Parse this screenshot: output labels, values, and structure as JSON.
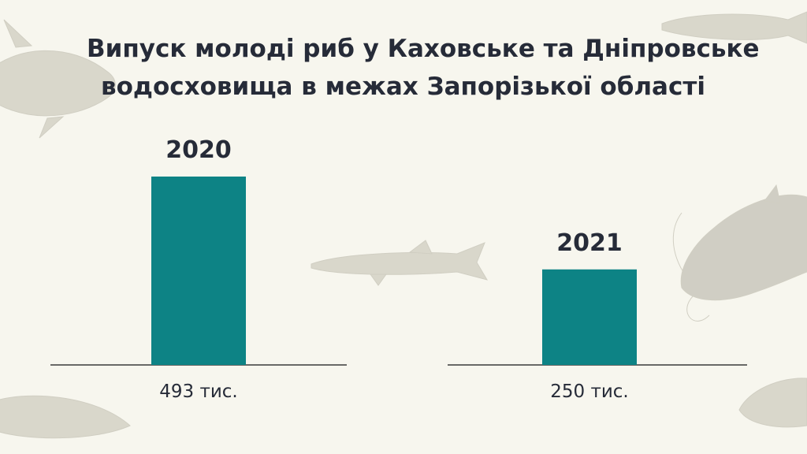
{
  "title_lines": [
    "Випуск молоді риб у Каховське та Дніпровське",
    "водосховища в межах Запорізької області"
  ],
  "colors": {
    "bar": "#0d8385",
    "background": "#f7f6ee",
    "text": "#262b38",
    "baseline": "#3a3a3a"
  },
  "decorations": [
    "carp-illustration",
    "pike-illustration",
    "catfish-illustration"
  ],
  "chart_data": {
    "type": "bar",
    "title": "Випуск молоді риб у Каховське та Дніпровське водосховища в межах Запорізької області",
    "categories": [
      "2020",
      "2021"
    ],
    "values": [
      493,
      250
    ],
    "value_labels": [
      "493 тис.",
      "250 тис."
    ],
    "ylim": [
      0,
      520
    ],
    "grid": false,
    "legend": "none"
  }
}
